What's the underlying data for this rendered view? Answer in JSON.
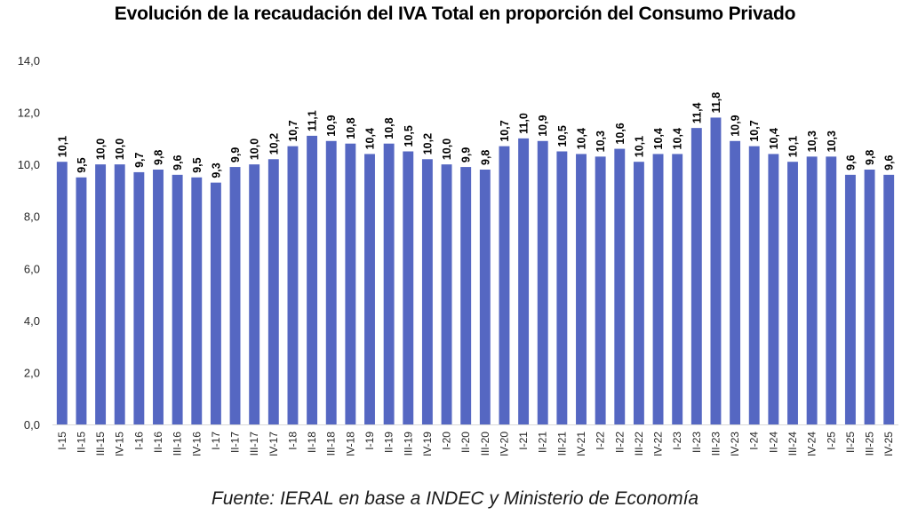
{
  "chart_data": {
    "type": "bar",
    "title": "Evolución de la recaudación del IVA Total en proporción del Consumo Privado",
    "source": "Fuente: IERAL en base a INDEC y Ministerio de Economía",
    "xlabel": "",
    "ylabel": "",
    "ylim": [
      0,
      14
    ],
    "yticks": [
      "0,0",
      "2,0",
      "4,0",
      "6,0",
      "8,0",
      "10,0",
      "12,0",
      "14,0"
    ],
    "ytick_values": [
      0,
      2,
      4,
      6,
      8,
      10,
      12,
      14
    ],
    "grid": false,
    "legend": "none",
    "bar_color": "#5567c2",
    "categories": [
      "I-15",
      "II-15",
      "III-15",
      "IV-15",
      "I-16",
      "II-16",
      "III-16",
      "IV-16",
      "I-17",
      "II-17",
      "III-17",
      "IV-17",
      "I-18",
      "II-18",
      "III-18",
      "IV-18",
      "I-19",
      "II-19",
      "III-19",
      "IV-19",
      "I-20",
      "II-20",
      "III-20",
      "IV-20",
      "I-21",
      "II-21",
      "III-21",
      "IV-21",
      "I-22",
      "II-22",
      "III-22",
      "IV-22",
      "I-23",
      "II-23",
      "III-23",
      "IV-23",
      "I-24",
      "II-24",
      "III-24",
      "IV-24",
      "I-25",
      "II-25",
      "III-25",
      "IV-25"
    ],
    "values": [
      10.1,
      9.5,
      10.0,
      10.0,
      9.7,
      9.8,
      9.6,
      9.5,
      9.3,
      9.9,
      10.0,
      10.2,
      10.7,
      11.1,
      10.9,
      10.8,
      10.4,
      10.8,
      10.5,
      10.2,
      10.0,
      9.9,
      9.8,
      10.7,
      11.0,
      10.9,
      10.5,
      10.4,
      10.3,
      10.6,
      10.1,
      10.4,
      10.4,
      11.4,
      11.8,
      10.9,
      10.7,
      10.4,
      10.1,
      10.3,
      10.3,
      9.6,
      9.8,
      9.6
    ],
    "labels": [
      "10,1",
      "9,5",
      "10,0",
      "10,0",
      "9,7",
      "9,8",
      "9,6",
      "9,5",
      "9,3",
      "9,9",
      "10,0",
      "10,2",
      "10,7",
      "11,1",
      "10,9",
      "10,8",
      "10,4",
      "10,8",
      "10,5",
      "10,2",
      "10,0",
      "9,9",
      "9,8",
      "10,7",
      "11,0",
      "10,9",
      "10,5",
      "10,4",
      "10,3",
      "10,6",
      "10,1",
      "10,4",
      "10,4",
      "11,4",
      "11,8",
      "10,9",
      "10,7",
      "10,4",
      "10,1",
      "10,3",
      "10,3",
      "9,6",
      "9,8",
      "9,6"
    ]
  }
}
